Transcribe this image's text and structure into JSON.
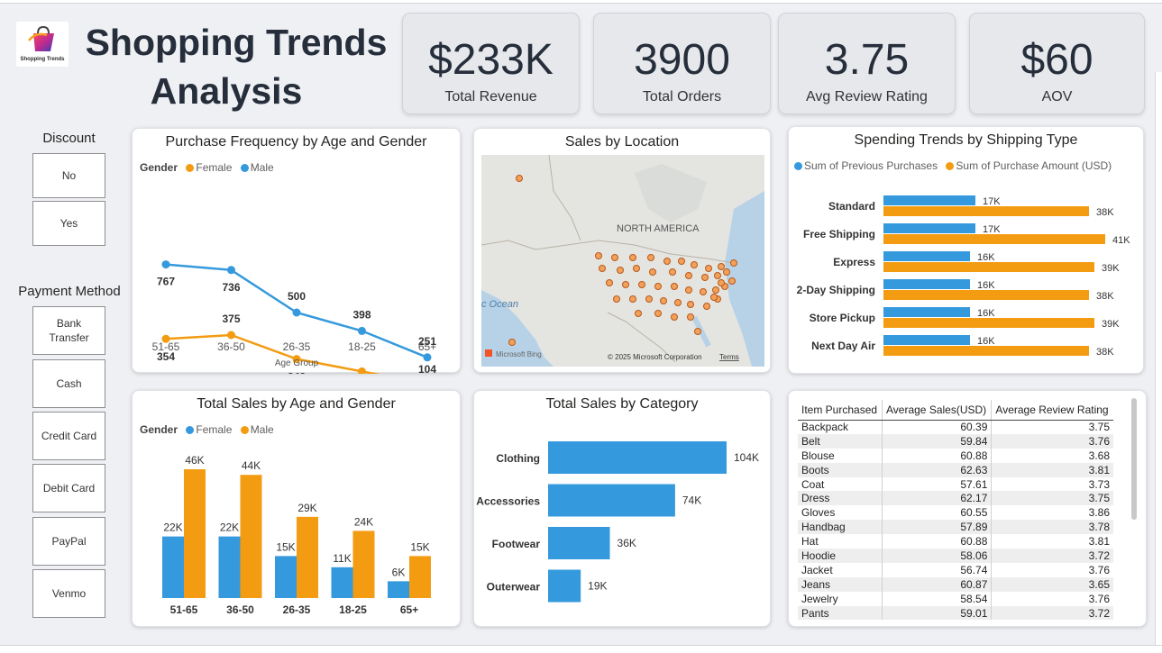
{
  "header": {
    "title_line1": "Shopping Trends",
    "title_line2": "Analysis",
    "logo_text": "Shopping Trends"
  },
  "kpis": [
    {
      "value": "$233K",
      "label": "Total Revenue"
    },
    {
      "value": "3900",
      "label": "Total Orders"
    },
    {
      "value": "3.75",
      "label": "Avg Review Rating"
    },
    {
      "value": "$60",
      "label": "AOV"
    }
  ],
  "slicers": {
    "discount": {
      "title": "Discount",
      "items": [
        "No",
        "Yes"
      ]
    },
    "payment": {
      "title": "Payment Method",
      "items": [
        "Bank Transfer",
        "Cash",
        "Credit Card",
        "Debit Card",
        "PayPal",
        "Venmo"
      ]
    }
  },
  "colors": {
    "blue": "#3599dd",
    "orange": "#f39c12",
    "navy": "#252e3a"
  },
  "chart_data": [
    {
      "type": "line",
      "title": "Purchase Frequency by Age and Gender",
      "legend_title": "Gender",
      "xlabel": "Age Group",
      "categories": [
        "51-65",
        "36-50",
        "26-35",
        "18-25",
        "65+"
      ],
      "series": [
        {
          "name": "Female",
          "values": [
            354,
            375,
            242,
            173,
            104
          ]
        },
        {
          "name": "Male",
          "values": [
            767,
            736,
            500,
            398,
            251
          ]
        }
      ]
    },
    {
      "type": "scatter",
      "title": "Sales by Location",
      "map_labels": [
        "NORTH AMERICA",
        "c Ocean"
      ],
      "attribution": "© 2025 Microsoft Corporation",
      "terms": "Terms",
      "provider": "Microsoft Bing"
    },
    {
      "type": "bar",
      "title": "Spending Trends by Shipping Type",
      "categories": [
        "Standard",
        "Free Shipping",
        "Express",
        "2-Day Shipping",
        "Store Pickup",
        "Next Day Air"
      ],
      "series": [
        {
          "name": "Sum of Previous Purchases",
          "values": [
            17,
            17,
            16,
            16,
            16,
            16
          ],
          "labels": [
            "17K",
            "17K",
            "16K",
            "16K",
            "16K",
            "16K"
          ]
        },
        {
          "name": "Sum of Purchase Amount (USD)",
          "values": [
            38,
            41,
            39,
            38,
            39,
            38
          ],
          "labels": [
            "38K",
            "41K",
            "39K",
            "38K",
            "39K",
            "38K"
          ]
        }
      ]
    },
    {
      "type": "bar",
      "title": "Total Sales by Age and Gender",
      "legend_title": "Gender",
      "categories": [
        "51-65",
        "36-50",
        "26-35",
        "18-25",
        "65+"
      ],
      "series": [
        {
          "name": "Female",
          "values": [
            22,
            22,
            15,
            11,
            6
          ],
          "labels": [
            "22K",
            "22K",
            "15K",
            "11K",
            "6K"
          ]
        },
        {
          "name": "Male",
          "values": [
            46,
            44,
            29,
            24,
            15
          ],
          "labels": [
            "46K",
            "44K",
            "29K",
            "24K",
            "15K"
          ]
        }
      ]
    },
    {
      "type": "bar",
      "title": "Total Sales by Category",
      "categories": [
        "Clothing",
        "Accessories",
        "Footwear",
        "Outerwear"
      ],
      "values": [
        104,
        74,
        36,
        19
      ],
      "labels": [
        "104K",
        "74K",
        "36K",
        "19K"
      ]
    },
    {
      "type": "table",
      "columns": [
        "Item Purchased",
        "Average Sales(USD)",
        "Average Review Rating"
      ],
      "rows": [
        [
          "Backpack",
          "60.39",
          "3.75"
        ],
        [
          "Belt",
          "59.84",
          "3.76"
        ],
        [
          "Blouse",
          "60.88",
          "3.68"
        ],
        [
          "Boots",
          "62.63",
          "3.81"
        ],
        [
          "Coat",
          "57.61",
          "3.73"
        ],
        [
          "Dress",
          "62.17",
          "3.75"
        ],
        [
          "Gloves",
          "60.55",
          "3.86"
        ],
        [
          "Handbag",
          "57.89",
          "3.78"
        ],
        [
          "Hat",
          "60.88",
          "3.81"
        ],
        [
          "Hoodie",
          "58.06",
          "3.72"
        ],
        [
          "Jacket",
          "56.74",
          "3.76"
        ],
        [
          "Jeans",
          "60.87",
          "3.65"
        ],
        [
          "Jewelry",
          "58.54",
          "3.76"
        ],
        [
          "Pants",
          "59.01",
          "3.72"
        ]
      ]
    }
  ]
}
